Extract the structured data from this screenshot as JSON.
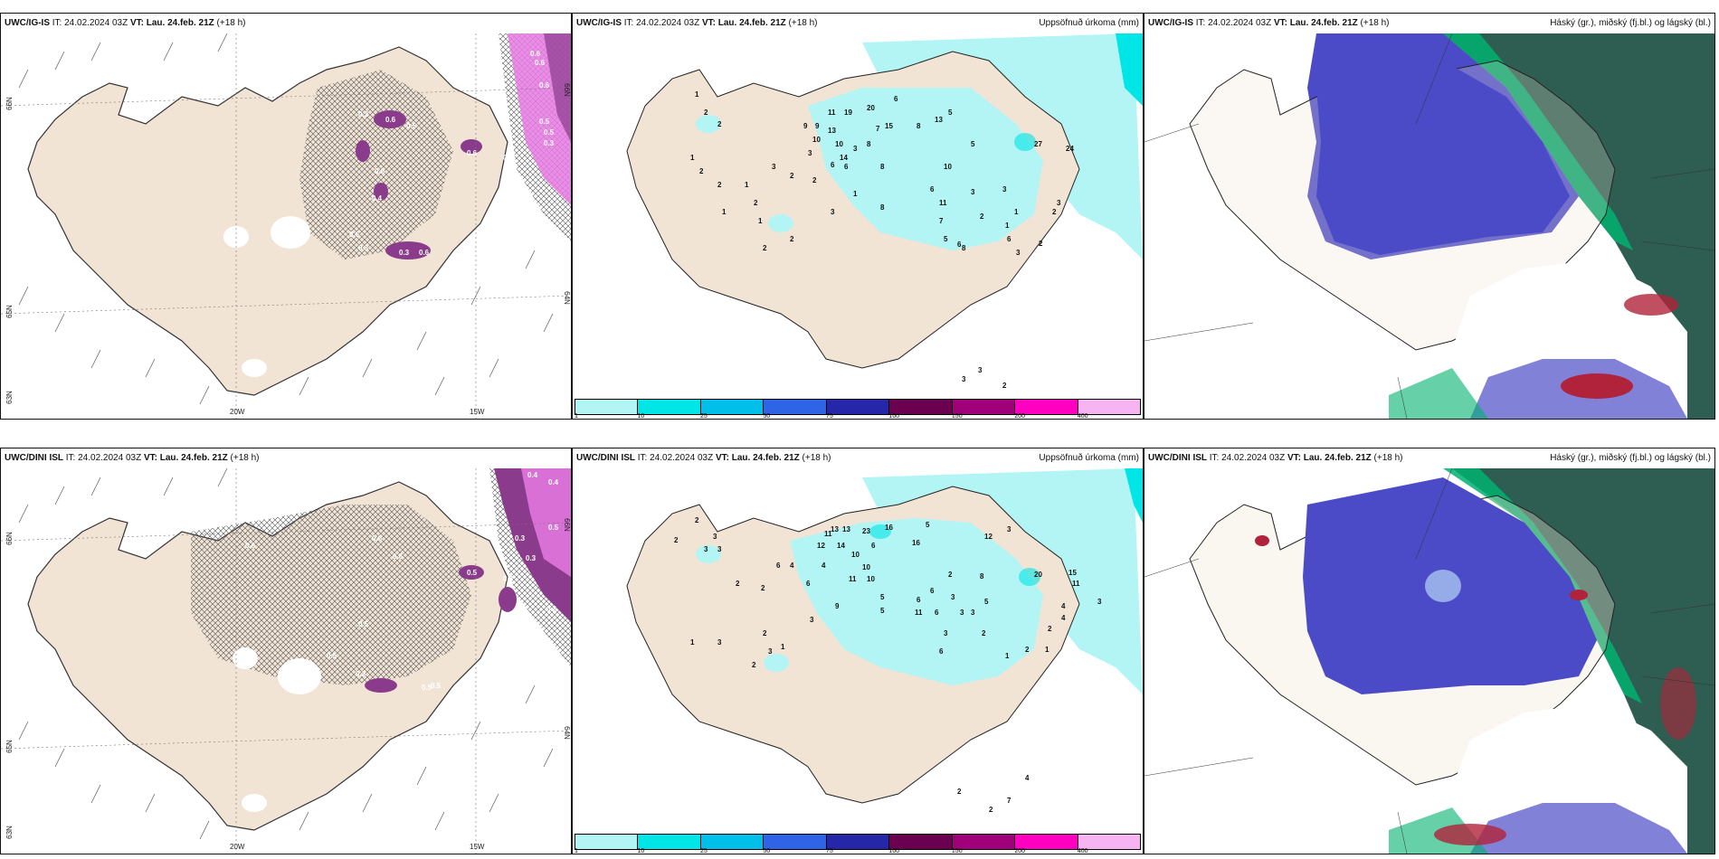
{
  "rows": [
    {
      "model_id": "UWC/IG-IS",
      "panels": [
        {
          "kind": "wind",
          "header_model": "UWC/IG-IS",
          "header_it": " IT: 24.02.2024 03Z ",
          "header_vt_label": "VT: Lau. 24.feb. 21Z",
          "header_lead": " (+18 h)",
          "title_right": "",
          "values": [
            "0.6",
            "0.6",
            "0.5",
            "0.5",
            "0.6",
            "0.3",
            "0.6",
            "0.4",
            "0.3",
            "0.6",
            "0.3",
            "0.5",
            "0.6",
            "0.5",
            "0.5",
            "0.6",
            "0.3",
            "0.6"
          ],
          "grid_labels": [
            "66N",
            "65N",
            "64N",
            "63N",
            "20W",
            "15W",
            "66N",
            "64N"
          ]
        },
        {
          "kind": "precip",
          "header_model": "UWC/IG-IS",
          "header_it": " IT: 24.02.2024 03Z ",
          "header_vt_label": "VT: Lau. 24.feb. 21Z",
          "header_lead": " (+18 h)",
          "title_right": "Uppsöfnuð úrkoma (mm)",
          "values": [
            "1",
            "2",
            "2",
            "1",
            "2",
            "3",
            "2",
            "1",
            "2",
            "2",
            "1",
            "1",
            "2",
            "2",
            "2",
            "3",
            "9",
            "9",
            "13",
            "11",
            "10",
            "19",
            "20",
            "6",
            "15",
            "8",
            "8",
            "13",
            "5",
            "3",
            "3",
            "10",
            "7",
            "6",
            "14",
            "6",
            "8",
            "10",
            "1",
            "8",
            "5",
            "27",
            "24",
            "6",
            "3",
            "11",
            "2",
            "1",
            "7",
            "1",
            "2",
            "3",
            "6",
            "5",
            "6",
            "3",
            "2",
            "3",
            "8",
            "3",
            "3",
            "2"
          ],
          "colorbar_ticks": [
            "1",
            "10",
            "25",
            "50",
            "75",
            "100",
            "150",
            "200",
            "400"
          ]
        },
        {
          "kind": "cloud",
          "header_model": "UWC/IG-IS",
          "header_it": " IT: 24.02.2024 03Z ",
          "header_vt_label": "VT: Lau. 24.feb. 21Z",
          "header_lead": " (+18 h)",
          "title_right": "Háský (gr.), miðský (fj.bl.) og lágský (bl.)"
        }
      ]
    },
    {
      "model_id": "UWC/DINI ISL",
      "panels": [
        {
          "kind": "wind",
          "header_model": "UWC/DINI ISL",
          "header_it": " IT: 24.02.2024 03Z ",
          "header_vt_label": "VT: Lau. 24.feb. 21Z",
          "header_lead": " (+18 h)",
          "title_right": "",
          "values": [
            "0.4",
            "0.4",
            "0.3",
            "0.5",
            "0.3",
            "0.2",
            "0.3",
            "0.5",
            "0.6",
            "0.6",
            "0.5",
            "0.5",
            "0.3",
            "0.5",
            "0.5",
            "0.6"
          ],
          "grid_labels": [
            "66N",
            "65N",
            "64N",
            "63N",
            "20W",
            "15W",
            "66N",
            "64N"
          ]
        },
        {
          "kind": "precip",
          "header_model": "UWC/DINI ISL",
          "header_it": " IT: 24.02.2024 03Z ",
          "header_vt_label": "VT: Lau. 24.feb. 21Z",
          "header_lead": " (+18 h)",
          "title_right": "Uppsöfnuð úrkoma (mm)",
          "values": [
            "2",
            "3",
            "3",
            "3",
            "2",
            "2",
            "2",
            "6",
            "4",
            "6",
            "4",
            "11",
            "12",
            "13",
            "13",
            "14",
            "10",
            "23",
            "16",
            "16",
            "5",
            "6",
            "12",
            "3",
            "10",
            "10",
            "11",
            "9",
            "5",
            "5",
            "6",
            "11",
            "8",
            "5",
            "6",
            "3",
            "3",
            "3",
            "6",
            "2",
            "1",
            "2",
            "3",
            "20",
            "15",
            "11",
            "3",
            "4",
            "4",
            "2",
            "1",
            "2",
            "2",
            "1",
            "6",
            "3",
            "1",
            "3",
            "2",
            "3",
            "2",
            "4",
            "7",
            "2"
          ],
          "colorbar_ticks": [
            "1",
            "10",
            "25",
            "50",
            "75",
            "100",
            "150",
            "200",
            "400"
          ]
        },
        {
          "kind": "cloud",
          "header_model": "UWC/DINI ISL",
          "header_it": " IT: 24.02.2024 03Z ",
          "header_vt_label": "VT: Lau. 24.feb. 21Z",
          "header_lead": " (+18 h)",
          "title_right": "Háský (gr.), miðský (fj.bl.) og lágský (bl.)"
        }
      ]
    }
  ],
  "colors": {
    "land": "#f1e4d5",
    "coast": "#333333",
    "precip_light": "#b3f5f5",
    "precip_mid": "#00e5e5",
    "precip_bar": [
      "#b3f5f5",
      "#00e5e5",
      "#00bfe8",
      "#3064e6",
      "#2626a8",
      "#6b0050",
      "#a0007a",
      "#ff00c0",
      "#f7b4f2"
    ],
    "wind_purple": "#8a3b8b",
    "wind_pink": "#e67ae3",
    "cloud_high": "#2e5d52",
    "cloud_mid": "#00b070",
    "cloud_low": "#4b4bc7",
    "cloud_red": "#b0233a"
  }
}
